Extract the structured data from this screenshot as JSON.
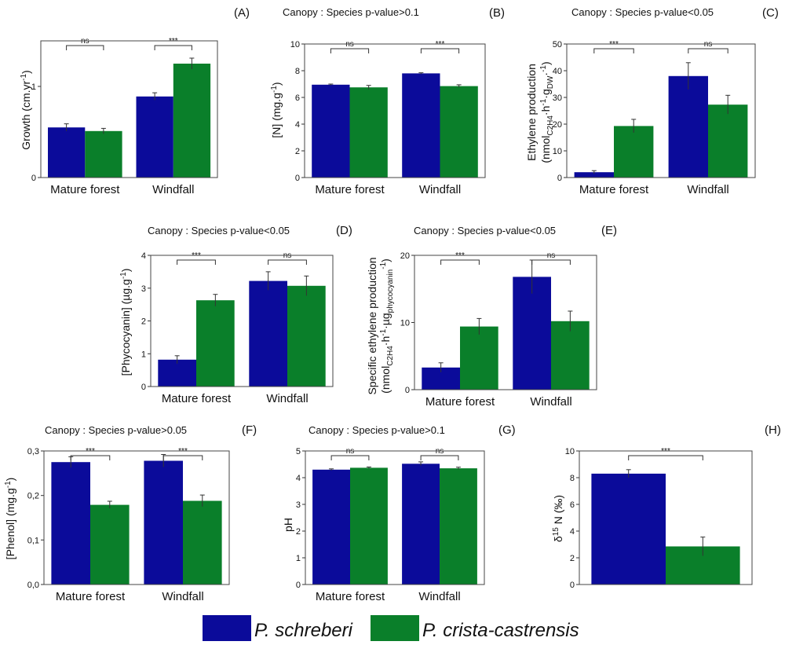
{
  "legend": {
    "entries": [
      {
        "label": "P. schreberi",
        "color": "#0b0b9a"
      },
      {
        "label": "P. crista-castrensis",
        "color": "#0a7f2a"
      }
    ]
  },
  "chart_data": [
    {
      "id": "A",
      "type": "bar",
      "letter": "(A)",
      "title": "",
      "categories": [
        "Mature forest",
        "Windfall"
      ],
      "series": [
        {
          "name": "P. schreberi",
          "values": [
            0.55,
            0.89
          ],
          "errors": [
            0.04,
            0.04
          ]
        },
        {
          "name": "P. crista-castrensis",
          "values": [
            0.51,
            1.25
          ],
          "errors": [
            0.03,
            0.06
          ]
        }
      ],
      "ylabel": "Growth (cm.yr-1)",
      "ylim": [
        0,
        1.5
      ],
      "yticks": [
        0,
        1
      ],
      "ytick_labels": [
        "0",
        "1"
      ],
      "significance": [
        "ns",
        "***"
      ]
    },
    {
      "id": "B",
      "type": "bar",
      "letter": "(B)",
      "title": "Canopy : Species p-value>0.1",
      "categories": [
        "Mature forest",
        "Windfall"
      ],
      "series": [
        {
          "name": "P. schreberi",
          "values": [
            6.95,
            7.8
          ],
          "errors": [
            0.05,
            0.05
          ]
        },
        {
          "name": "P. crista-castrensis",
          "values": [
            6.75,
            6.85
          ],
          "errors": [
            0.15,
            0.1
          ]
        }
      ],
      "ylabel": "[N] (mg.g-1)",
      "ylim": [
        0,
        10
      ],
      "yticks": [
        0,
        2,
        4,
        6,
        8,
        10
      ],
      "ytick_labels": [
        "0",
        "2",
        "4",
        "6",
        "8",
        "10"
      ],
      "significance": [
        "ns",
        "***"
      ]
    },
    {
      "id": "C",
      "type": "bar",
      "letter": "(C)",
      "title": "Canopy : Species p-value<0.05",
      "categories": [
        "Mature forest",
        "Windfall"
      ],
      "series": [
        {
          "name": "P. schreberi",
          "values": [
            2,
            38
          ],
          "errors": [
            0.6,
            5
          ]
        },
        {
          "name": "P. crista-castrensis",
          "values": [
            19.3,
            27.3
          ],
          "errors": [
            2.5,
            3.5
          ]
        }
      ],
      "ylabel": "Ethylene production (nmolC2H4·h-1·gDW-1)",
      "ylim": [
        0,
        50
      ],
      "yticks": [
        0,
        10,
        20,
        30,
        40,
        50
      ],
      "ytick_labels": [
        "0",
        "10",
        "20",
        "30",
        "40",
        "50"
      ],
      "significance": [
        "***",
        "ns"
      ]
    },
    {
      "id": "D",
      "type": "bar",
      "letter": "(D)",
      "title": "Canopy : Species p-value<0.05",
      "categories": [
        "Mature forest",
        "Windfall"
      ],
      "series": [
        {
          "name": "P. schreberi",
          "values": [
            0.82,
            3.22
          ],
          "errors": [
            0.12,
            0.28
          ]
        },
        {
          "name": "P. crista-castrensis",
          "values": [
            2.63,
            3.07
          ],
          "errors": [
            0.18,
            0.3
          ]
        }
      ],
      "ylabel": "[Phycocyanin] (µg.g-1)",
      "ylim": [
        0,
        4
      ],
      "yticks": [
        0,
        1,
        2,
        3,
        4
      ],
      "ytick_labels": [
        "0",
        "1",
        "2",
        "3",
        "4"
      ],
      "significance": [
        "***",
        "ns"
      ]
    },
    {
      "id": "E",
      "type": "bar",
      "letter": "(E)",
      "title": "Canopy : Species p-value<0.05",
      "categories": [
        "Mature forest",
        "Windfall"
      ],
      "series": [
        {
          "name": "P. schreberi",
          "values": [
            3.3,
            16.8
          ],
          "errors": [
            0.7,
            2.5
          ]
        },
        {
          "name": "P. crista-castrensis",
          "values": [
            9.4,
            10.2
          ],
          "errors": [
            1.2,
            1.5
          ]
        }
      ],
      "ylabel": "Specific ethylene production (nmolC2H4·h-1·µgphycocyanin-1)",
      "ylim": [
        0,
        20
      ],
      "yticks": [
        0,
        10,
        20
      ],
      "ytick_labels": [
        "0",
        "10",
        "20"
      ],
      "significance": [
        "***",
        "ns"
      ]
    },
    {
      "id": "F",
      "type": "bar",
      "letter": "(F)",
      "title": "Canopy : Species p-value>0.05",
      "categories": [
        "Mature forest",
        "Windfall"
      ],
      "series": [
        {
          "name": "P. schreberi",
          "values": [
            0.275,
            0.278
          ],
          "errors": [
            0.012,
            0.014
          ]
        },
        {
          "name": "P. crista-castrensis",
          "values": [
            0.179,
            0.188
          ],
          "errors": [
            0.008,
            0.013
          ]
        }
      ],
      "ylabel": "[Phenol] (mg.g-1)",
      "ylim": [
        0,
        0.3
      ],
      "yticks": [
        0,
        0.1,
        0.2,
        0.3
      ],
      "ytick_labels": [
        "0,0",
        "0,1",
        "0,2",
        "0,3"
      ],
      "significance": [
        "***",
        "***"
      ]
    },
    {
      "id": "G",
      "type": "bar",
      "letter": "(G)",
      "title": "Canopy : Species p-value>0.1",
      "categories": [
        "Mature forest",
        "Windfall"
      ],
      "series": [
        {
          "name": "P. schreberi",
          "values": [
            4.3,
            4.52
          ],
          "errors": [
            0.03,
            0.07
          ]
        },
        {
          "name": "P. crista-castrensis",
          "values": [
            4.37,
            4.35
          ],
          "errors": [
            0.03,
            0.04
          ]
        }
      ],
      "ylabel": "pH",
      "ylim": [
        0,
        5
      ],
      "yticks": [
        0,
        1,
        2,
        3,
        4,
        5
      ],
      "ytick_labels": [
        "0",
        "1",
        "2",
        "3",
        "4",
        "5"
      ],
      "significance": [
        "ns",
        "ns"
      ]
    },
    {
      "id": "H",
      "type": "bar",
      "letter": "(H)",
      "title": "",
      "categories": [
        ""
      ],
      "series": [
        {
          "name": "P. schreberi",
          "values": [
            8.3
          ],
          "errors": [
            0.3
          ]
        },
        {
          "name": "P. crista-castrensis",
          "values": [
            2.85
          ],
          "errors": [
            0.7
          ]
        }
      ],
      "ylabel": "δ15 N (‰)",
      "ylim": [
        0,
        10
      ],
      "yticks": [
        0,
        2,
        4,
        6,
        8,
        10
      ],
      "ytick_labels": [
        "0",
        "2",
        "4",
        "6",
        "8",
        "10"
      ],
      "significance": [
        "***"
      ]
    }
  ]
}
